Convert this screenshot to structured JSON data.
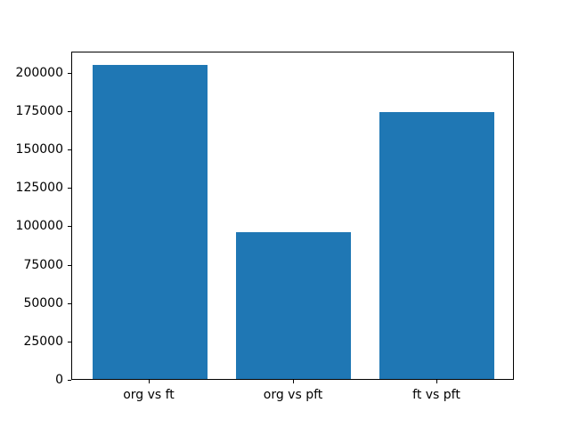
{
  "figure": {
    "background": "#ffffff",
    "title": ""
  },
  "chart_data": {
    "type": "bar",
    "title": "",
    "xlabel": "",
    "ylabel": "",
    "categories": [
      "org vs ft",
      "org vs pft",
      "ft vs pft"
    ],
    "values": [
      204600,
      95500,
      173700
    ],
    "bar_color": "#1f77b4",
    "axis_color": "#000000",
    "grid": false,
    "legend": null,
    "ylim": [
      0,
      213800
    ],
    "yticks": [
      0,
      25000,
      50000,
      75000,
      100000,
      125000,
      150000,
      175000,
      200000
    ],
    "ytick_labels": [
      "0",
      "25000",
      "50000",
      "75000",
      "100000",
      "125000",
      "150000",
      "175000",
      "200000"
    ]
  }
}
